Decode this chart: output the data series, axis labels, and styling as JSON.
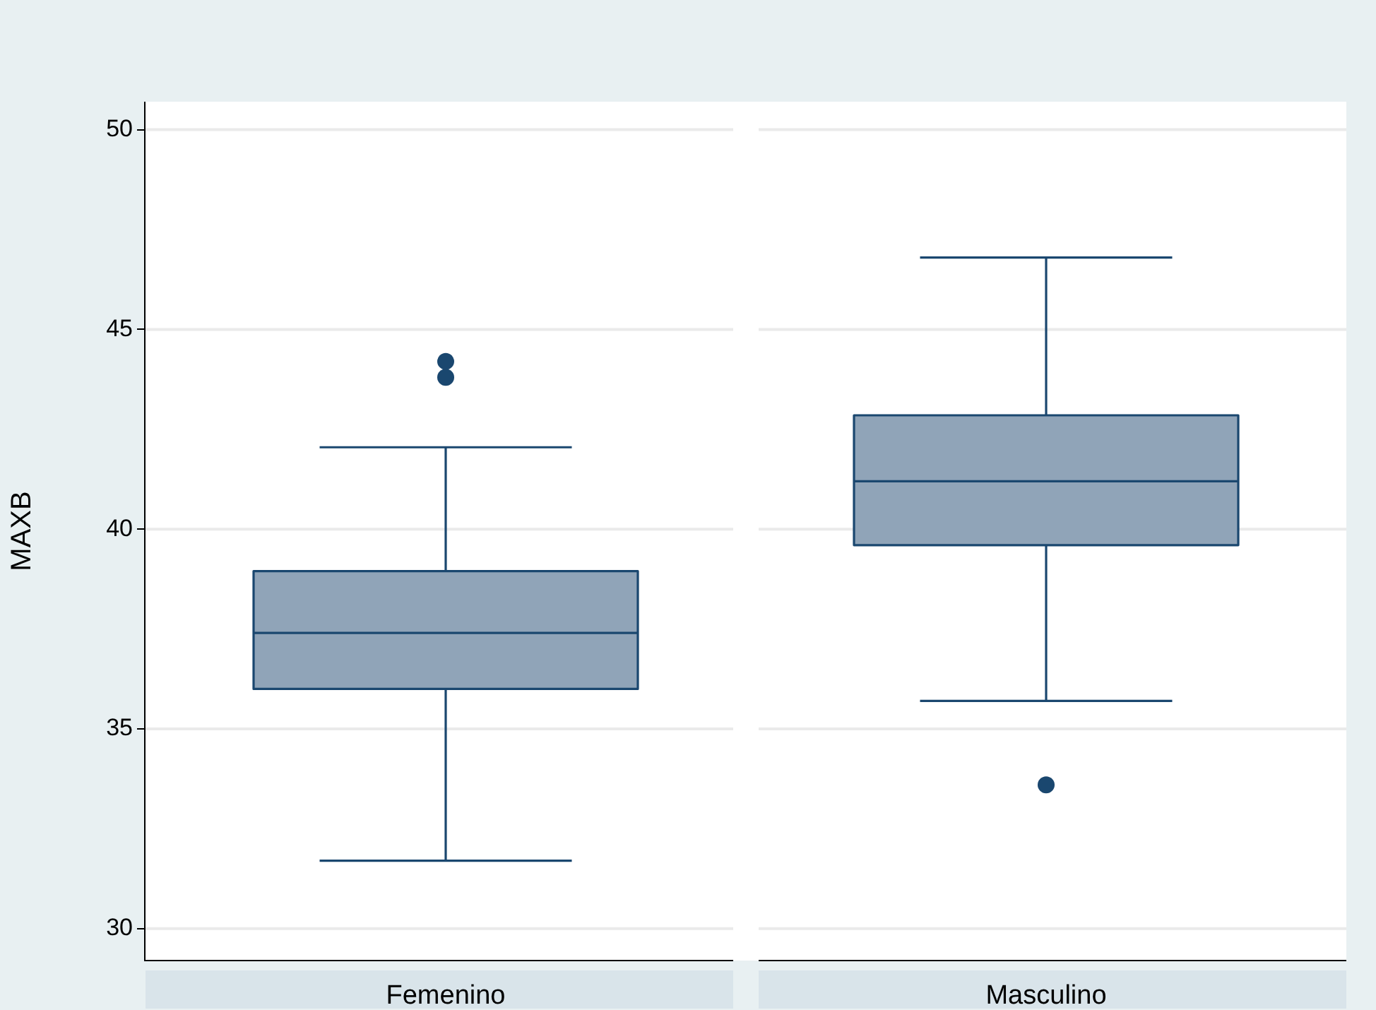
{
  "chart_data": {
    "type": "box",
    "ylabel": "MAXB",
    "categories": [
      "Femenino",
      "Masculino"
    ],
    "color": "#90a4b8",
    "ylim": [
      29.2,
      50.7
    ],
    "yticks": [
      30,
      35,
      40,
      45,
      50
    ],
    "grid": "y",
    "legend": false,
    "boxes": [
      {
        "low": 31.7,
        "q1": 36.0,
        "median": 37.4,
        "q3": 38.95,
        "high": 42.05,
        "outliers": [
          44.2,
          43.8
        ]
      },
      {
        "low": 35.7,
        "q1": 39.6,
        "median": 41.2,
        "q3": 42.85,
        "high": 46.8,
        "outliers": [
          33.6
        ]
      }
    ]
  }
}
